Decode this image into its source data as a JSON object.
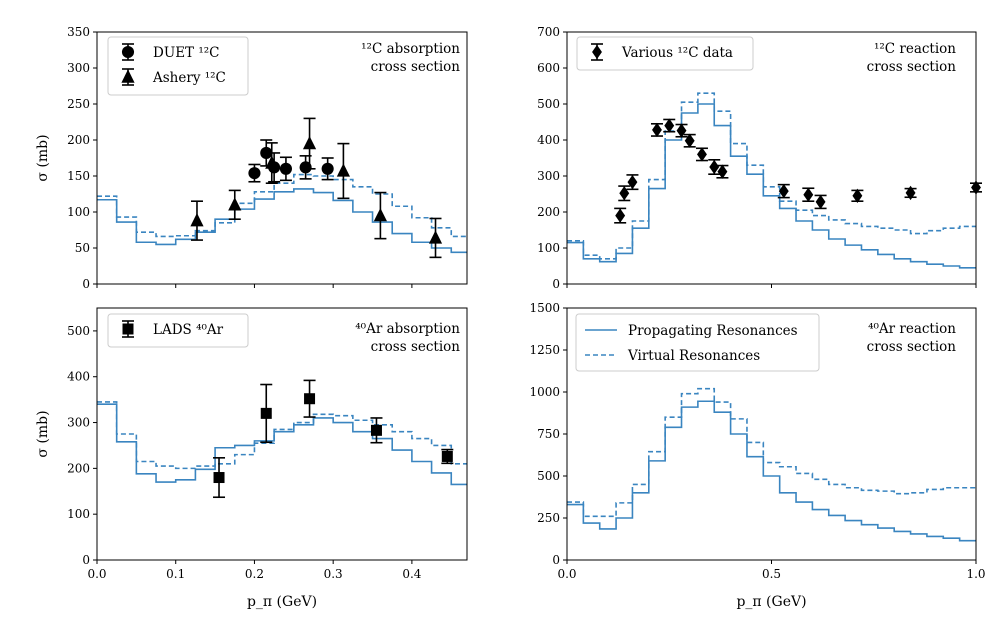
{
  "colors": {
    "model": "#3a85c0",
    "data": "#000000"
  },
  "legend_models": {
    "solid": "Propagating Resonances",
    "dashed": "Virtual Resonances"
  },
  "chart_data": [
    {
      "id": "c12-absorption",
      "type": "line",
      "annotation": [
        "¹²C absorption",
        "cross section"
      ],
      "ylabel": "σ (mb)",
      "xlabel": "",
      "xlim": [
        0,
        0.47
      ],
      "ylim": [
        0,
        350
      ],
      "xticks": [
        0.0,
        0.1,
        0.2,
        0.3,
        0.4
      ],
      "xtick_labels": [],
      "yticks": [
        0,
        50,
        100,
        150,
        200,
        250,
        300,
        350
      ],
      "ytick_labels": [
        "0",
        "50",
        "100",
        "150",
        "200",
        "250",
        "300",
        "350"
      ],
      "legend": [
        {
          "label": "DUET ¹²C",
          "marker": "circle"
        },
        {
          "label": "Ashery ¹²C",
          "marker": "triangle"
        }
      ],
      "series": [
        {
          "name": "Propagating Resonances",
          "style": "solid",
          "edges": [
            0,
            0.025,
            0.05,
            0.075,
            0.1,
            0.125,
            0.15,
            0.175,
            0.2,
            0.225,
            0.25,
            0.275,
            0.3,
            0.325,
            0.35,
            0.375,
            0.4,
            0.425,
            0.45,
            0.47
          ],
          "values": [
            117,
            86,
            58,
            55,
            62,
            72,
            90,
            104,
            118,
            128,
            132,
            127,
            116,
            100,
            86,
            70,
            58,
            50,
            44
          ]
        },
        {
          "name": "Virtual Resonances",
          "style": "dashed",
          "edges": [
            0,
            0.025,
            0.05,
            0.075,
            0.1,
            0.125,
            0.15,
            0.175,
            0.2,
            0.225,
            0.25,
            0.275,
            0.3,
            0.325,
            0.35,
            0.375,
            0.4,
            0.425,
            0.45,
            0.47
          ],
          "values": [
            122,
            93,
            72,
            66,
            67,
            74,
            85,
            112,
            128,
            140,
            152,
            150,
            145,
            135,
            125,
            108,
            92,
            78,
            66
          ]
        }
      ],
      "points": [
        {
          "name": "DUET ¹²C",
          "marker": "circle",
          "x": [
            0.2,
            0.215,
            0.225,
            0.24,
            0.265,
            0.293
          ],
          "y": [
            154,
            182,
            162,
            160,
            162,
            160
          ],
          "err": [
            12,
            18,
            20,
            16,
            16,
            15
          ]
        },
        {
          "name": "Ashery ¹²C",
          "marker": "triangle",
          "x": [
            0.127,
            0.175,
            0.222,
            0.27,
            0.313,
            0.36,
            0.43
          ],
          "y": [
            88,
            110,
            168,
            195,
            157,
            95,
            64
          ],
          "err": [
            27,
            20,
            28,
            35,
            38,
            32,
            27
          ]
        }
      ]
    },
    {
      "id": "c12-reaction",
      "type": "line",
      "annotation": [
        "¹²C reaction",
        "cross section"
      ],
      "ylabel": "",
      "xlabel": "",
      "xlim": [
        0,
        1.0
      ],
      "ylim": [
        0,
        700
      ],
      "xticks": [
        0.0,
        0.5,
        1.0
      ],
      "xtick_labels": [],
      "yticks": [
        0,
        100,
        200,
        300,
        400,
        500,
        600,
        700
      ],
      "ytick_labels": [
        "0",
        "100",
        "200",
        "300",
        "400",
        "500",
        "600",
        "700"
      ],
      "legend": [
        {
          "label": "Various ¹²C data",
          "marker": "diamond"
        }
      ],
      "series": [
        {
          "name": "Propagating Resonances",
          "style": "solid",
          "edges": [
            0,
            0.04,
            0.08,
            0.12,
            0.16,
            0.2,
            0.24,
            0.28,
            0.32,
            0.36,
            0.4,
            0.44,
            0.48,
            0.52,
            0.56,
            0.6,
            0.64,
            0.68,
            0.72,
            0.76,
            0.8,
            0.84,
            0.88,
            0.92,
            0.96,
            1.0
          ],
          "values": [
            115,
            70,
            62,
            85,
            155,
            265,
            400,
            475,
            500,
            440,
            355,
            305,
            245,
            210,
            175,
            150,
            125,
            108,
            95,
            82,
            70,
            62,
            55,
            50,
            45
          ]
        },
        {
          "name": "Virtual Resonances",
          "style": "dashed",
          "edges": [
            0,
            0.04,
            0.08,
            0.12,
            0.16,
            0.2,
            0.24,
            0.28,
            0.32,
            0.36,
            0.4,
            0.44,
            0.48,
            0.52,
            0.56,
            0.6,
            0.64,
            0.68,
            0.72,
            0.76,
            0.8,
            0.84,
            0.88,
            0.92,
            0.96,
            1.0
          ],
          "values": [
            120,
            80,
            70,
            100,
            175,
            290,
            425,
            505,
            530,
            480,
            390,
            330,
            270,
            230,
            205,
            190,
            178,
            168,
            160,
            155,
            150,
            140,
            148,
            155,
            160
          ]
        }
      ],
      "points": [
        {
          "name": "Various ¹²C data",
          "marker": "diamond",
          "x": [
            0.13,
            0.14,
            0.16,
            0.22,
            0.25,
            0.28,
            0.3,
            0.33,
            0.36,
            0.38,
            0.53,
            0.59,
            0.62,
            0.71,
            0.84,
            1.0
          ],
          "y": [
            190,
            252,
            283,
            428,
            440,
            426,
            398,
            360,
            325,
            312,
            258,
            248,
            228,
            245,
            253,
            268
          ],
          "err": [
            20,
            20,
            20,
            17,
            17,
            17,
            17,
            17,
            20,
            17,
            18,
            18,
            18,
            15,
            12,
            12
          ]
        }
      ]
    },
    {
      "id": "ar40-absorption",
      "type": "line",
      "annotation": [
        "⁴⁰Ar absorption",
        "cross section"
      ],
      "ylabel": "σ (mb)",
      "xlabel": "p_π (GeV)",
      "xlim": [
        0,
        0.47
      ],
      "ylim": [
        0,
        550
      ],
      "xticks": [
        0.0,
        0.1,
        0.2,
        0.3,
        0.4
      ],
      "xtick_labels": [
        "0.0",
        "0.1",
        "0.2",
        "0.3",
        "0.4"
      ],
      "yticks": [
        0,
        100,
        200,
        300,
        400,
        500
      ],
      "ytick_labels": [
        "0",
        "100",
        "200",
        "300",
        "400",
        "500"
      ],
      "legend": [
        {
          "label": "LADS ⁴⁰Ar",
          "marker": "square"
        }
      ],
      "series": [
        {
          "name": "Propagating Resonances",
          "style": "solid",
          "edges": [
            0,
            0.025,
            0.05,
            0.075,
            0.1,
            0.125,
            0.15,
            0.175,
            0.2,
            0.225,
            0.25,
            0.275,
            0.3,
            0.325,
            0.35,
            0.375,
            0.4,
            0.425,
            0.45,
            0.47
          ],
          "values": [
            340,
            258,
            188,
            170,
            175,
            198,
            245,
            250,
            260,
            280,
            295,
            310,
            300,
            280,
            265,
            240,
            215,
            190,
            165
          ]
        },
        {
          "name": "Virtual Resonances",
          "style": "dashed",
          "edges": [
            0,
            0.025,
            0.05,
            0.075,
            0.1,
            0.125,
            0.15,
            0.175,
            0.2,
            0.225,
            0.25,
            0.275,
            0.3,
            0.325,
            0.35,
            0.375,
            0.4,
            0.425,
            0.45,
            0.47
          ],
          "values": [
            345,
            275,
            215,
            205,
            200,
            205,
            210,
            230,
            255,
            285,
            300,
            318,
            315,
            305,
            295,
            280,
            265,
            250,
            210
          ]
        }
      ],
      "points": [
        {
          "name": "LADS ⁴⁰Ar",
          "marker": "square",
          "x": [
            0.155,
            0.215,
            0.27,
            0.355,
            0.445
          ],
          "y": [
            180,
            320,
            352,
            283,
            226
          ],
          "err": [
            43,
            63,
            40,
            27,
            15
          ]
        }
      ]
    },
    {
      "id": "ar40-reaction",
      "type": "line",
      "annotation": [
        "⁴⁰Ar reaction",
        "cross section"
      ],
      "ylabel": "",
      "xlabel": "p_π (GeV)",
      "xlim": [
        0,
        1.0
      ],
      "ylim": [
        0,
        1500
      ],
      "xticks": [
        0.0,
        0.5,
        1.0
      ],
      "xtick_labels": [
        "0.0",
        "0.5",
        "1.0"
      ],
      "yticks": [
        0,
        250,
        500,
        750,
        1000,
        1250,
        1500
      ],
      "ytick_labels": [
        "0",
        "250",
        "500",
        "750",
        "1000",
        "1250",
        "1500"
      ],
      "legend": [],
      "series": [
        {
          "name": "Propagating Resonances",
          "style": "solid",
          "edges": [
            0,
            0.04,
            0.08,
            0.12,
            0.16,
            0.2,
            0.24,
            0.28,
            0.32,
            0.36,
            0.4,
            0.44,
            0.48,
            0.52,
            0.56,
            0.6,
            0.64,
            0.68,
            0.72,
            0.76,
            0.8,
            0.84,
            0.88,
            0.92,
            0.96,
            1.0
          ],
          "values": [
            330,
            220,
            185,
            250,
            400,
            590,
            790,
            910,
            945,
            880,
            750,
            615,
            500,
            400,
            345,
            300,
            265,
            235,
            210,
            190,
            170,
            155,
            140,
            130,
            115
          ]
        },
        {
          "name": "Virtual Resonances",
          "style": "dashed",
          "edges": [
            0,
            0.04,
            0.08,
            0.12,
            0.16,
            0.2,
            0.24,
            0.28,
            0.32,
            0.36,
            0.4,
            0.44,
            0.48,
            0.52,
            0.56,
            0.6,
            0.64,
            0.68,
            0.72,
            0.76,
            0.8,
            0.84,
            0.88,
            0.92,
            0.96,
            1.0
          ],
          "values": [
            345,
            260,
            260,
            340,
            450,
            645,
            850,
            990,
            1020,
            940,
            840,
            700,
            580,
            555,
            515,
            480,
            450,
            430,
            415,
            410,
            395,
            400,
            420,
            430,
            430
          ]
        }
      ],
      "points": []
    }
  ]
}
